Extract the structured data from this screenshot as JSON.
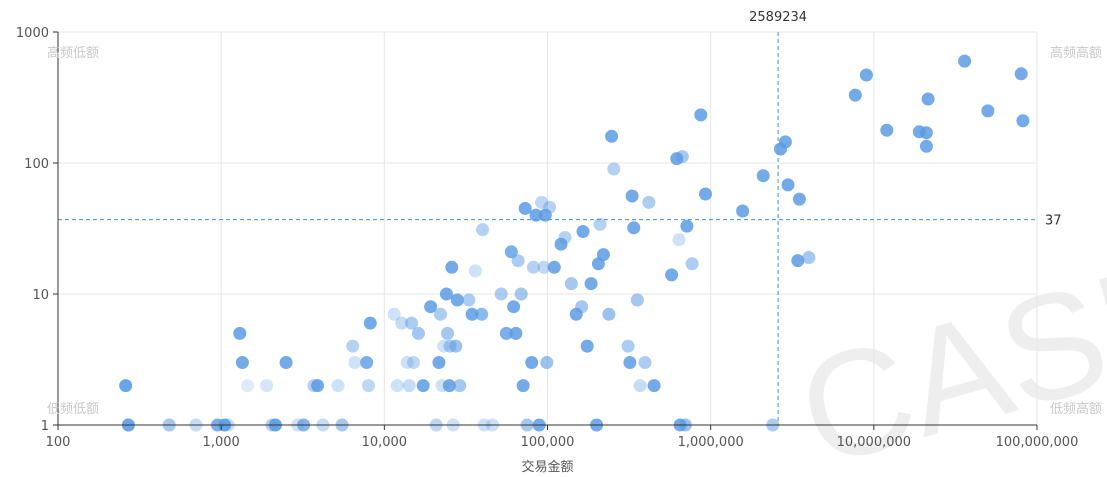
{
  "chart_data": {
    "type": "scatter",
    "xlabel": "交易金额",
    "ylabel": "",
    "x_scale": "log",
    "y_scale": "log",
    "xlim": [
      100,
      100000000
    ],
    "ylim": [
      1,
      1000
    ],
    "x_ticks": [
      {
        "value": 100,
        "label": "100"
      },
      {
        "value": 1000,
        "label": "1,000"
      },
      {
        "value": 10000,
        "label": "10,000"
      },
      {
        "value": 100000,
        "label": "100,000"
      },
      {
        "value": 1000000,
        "label": "1,000,000"
      },
      {
        "value": 10000000,
        "label": "10,000,000"
      },
      {
        "value": 100000000,
        "label": "100,000,000"
      }
    ],
    "y_ticks": [
      {
        "value": 1,
        "label": "1"
      },
      {
        "value": 10,
        "label": "10"
      },
      {
        "value": 100,
        "label": "100"
      },
      {
        "value": 1000,
        "label": "1000"
      }
    ],
    "grid": true,
    "reference_lines": {
      "x": {
        "value": 2589234,
        "label": "2589234"
      },
      "y": {
        "value": 37,
        "label": "37"
      }
    },
    "quadrant_labels": {
      "top_left": "高频低额",
      "top_right": "高频高额",
      "bottom_left": "低频低额",
      "bottom_right": "低频高额"
    },
    "watermark": "CASE",
    "point_color": "#5a9be3",
    "points": [
      [
        260,
        2,
        0.9
      ],
      [
        270,
        1,
        0.9
      ],
      [
        480,
        1,
        0.55
      ],
      [
        700,
        1,
        0.35
      ],
      [
        950,
        1,
        0.8
      ],
      [
        1050,
        1,
        0.9
      ],
      [
        1100,
        1,
        0.35
      ],
      [
        1300,
        5,
        0.85
      ],
      [
        1350,
        3,
        0.85
      ],
      [
        1450,
        2,
        0.2
      ],
      [
        1900,
        2,
        0.25
      ],
      [
        2050,
        1,
        0.45
      ],
      [
        2150,
        1,
        0.9
      ],
      [
        2500,
        3,
        0.85
      ],
      [
        2950,
        1,
        0.3
      ],
      [
        3200,
        1,
        0.75
      ],
      [
        3700,
        2,
        0.45
      ],
      [
        3900,
        2,
        0.85
      ],
      [
        4200,
        1,
        0.35
      ],
      [
        5200,
        2,
        0.3
      ],
      [
        5500,
        1,
        0.55
      ],
      [
        6400,
        4,
        0.45
      ],
      [
        6600,
        3,
        0.3
      ],
      [
        7800,
        3,
        0.8
      ],
      [
        8000,
        2,
        0.4
      ],
      [
        8200,
        6,
        0.85
      ],
      [
        11500,
        7,
        0.3
      ],
      [
        12000,
        2,
        0.3
      ],
      [
        12800,
        6,
        0.35
      ],
      [
        13800,
        3,
        0.3
      ],
      [
        14200,
        2,
        0.35
      ],
      [
        14700,
        6,
        0.5
      ],
      [
        15100,
        3,
        0.4
      ],
      [
        16200,
        5,
        0.55
      ],
      [
        17300,
        2,
        0.85
      ],
      [
        19200,
        8,
        0.85
      ],
      [
        20800,
        1,
        0.4
      ],
      [
        21600,
        3,
        0.85
      ],
      [
        22100,
        7,
        0.5
      ],
      [
        22600,
        2,
        0.3
      ],
      [
        23100,
        4,
        0.3
      ],
      [
        24000,
        10,
        0.85
      ],
      [
        24400,
        5,
        0.55
      ],
      [
        25000,
        2,
        0.85
      ],
      [
        25300,
        4,
        0.5
      ],
      [
        25900,
        16,
        0.85
      ],
      [
        26400,
        1,
        0.3
      ],
      [
        27400,
        4,
        0.6
      ],
      [
        28000,
        9,
        0.85
      ],
      [
        29000,
        2,
        0.55
      ],
      [
        33000,
        9,
        0.5
      ],
      [
        34500,
        7,
        0.85
      ],
      [
        36100,
        15,
        0.3
      ],
      [
        39500,
        7,
        0.7
      ],
      [
        40000,
        31,
        0.45
      ],
      [
        41000,
        1,
        0.3
      ],
      [
        46000,
        1,
        0.3
      ],
      [
        52000,
        10,
        0.5
      ],
      [
        56000,
        5,
        0.8
      ],
      [
        60000,
        21,
        0.8
      ],
      [
        62000,
        8,
        0.85
      ],
      [
        64000,
        5,
        0.85
      ],
      [
        66000,
        18,
        0.5
      ],
      [
        69000,
        10,
        0.55
      ],
      [
        71000,
        2,
        0.85
      ],
      [
        73000,
        45,
        0.85
      ],
      [
        75000,
        1,
        0.55
      ],
      [
        80000,
        3,
        0.85
      ],
      [
        82000,
        16,
        0.45
      ],
      [
        85000,
        40,
        0.85
      ],
      [
        89000,
        1,
        0.85
      ],
      [
        92000,
        50,
        0.4
      ],
      [
        95000,
        16,
        0.4
      ],
      [
        97000,
        40,
        0.85
      ],
      [
        99000,
        3,
        0.6
      ],
      [
        103000,
        46,
        0.45
      ],
      [
        110000,
        16,
        0.85
      ],
      [
        121000,
        24,
        0.85
      ],
      [
        128000,
        27,
        0.45
      ],
      [
        140000,
        12,
        0.55
      ],
      [
        150000,
        7,
        0.85
      ],
      [
        162000,
        8,
        0.55
      ],
      [
        165000,
        30,
        0.85
      ],
      [
        175000,
        4,
        0.85
      ],
      [
        185000,
        12,
        0.85
      ],
      [
        200000,
        1,
        0.85
      ],
      [
        205000,
        17,
        0.85
      ],
      [
        210000,
        34,
        0.45
      ],
      [
        220000,
        20,
        0.85
      ],
      [
        238000,
        7,
        0.6
      ],
      [
        247000,
        160,
        0.85
      ],
      [
        255000,
        90,
        0.45
      ],
      [
        312000,
        4,
        0.5
      ],
      [
        320000,
        3,
        0.85
      ],
      [
        330000,
        56,
        0.85
      ],
      [
        338000,
        32,
        0.85
      ],
      [
        355000,
        9,
        0.55
      ],
      [
        370000,
        2,
        0.35
      ],
      [
        396000,
        3,
        0.5
      ],
      [
        418000,
        50,
        0.5
      ],
      [
        450000,
        2,
        0.85
      ],
      [
        576000,
        14,
        0.85
      ],
      [
        620000,
        108,
        0.85
      ],
      [
        640000,
        26,
        0.3
      ],
      [
        650000,
        1,
        0.85
      ],
      [
        670000,
        112,
        0.55
      ],
      [
        700000,
        1,
        0.6
      ],
      [
        715000,
        33,
        0.85
      ],
      [
        770000,
        17,
        0.5
      ],
      [
        870000,
        233,
        0.85
      ],
      [
        930000,
        58,
        0.85
      ],
      [
        1570000,
        43,
        0.85
      ],
      [
        2100000,
        80,
        0.85
      ],
      [
        2400000,
        1,
        0.5
      ],
      [
        2680000,
        128,
        0.85
      ],
      [
        2870000,
        145,
        0.85
      ],
      [
        2980000,
        68,
        0.85
      ],
      [
        3420000,
        18,
        0.85
      ],
      [
        3500000,
        53,
        0.85
      ],
      [
        4000000,
        19,
        0.55
      ],
      [
        7700000,
        330,
        0.85
      ],
      [
        9000000,
        470,
        0.85
      ],
      [
        12000000,
        178,
        0.85
      ],
      [
        19000000,
        173,
        0.85
      ],
      [
        21000000,
        170,
        0.85
      ],
      [
        21000000,
        134,
        0.85
      ],
      [
        21500000,
        308,
        0.85
      ],
      [
        36000000,
        600,
        0.85
      ],
      [
        50000000,
        250,
        0.85
      ],
      [
        80000000,
        480,
        0.85
      ],
      [
        82000000,
        210,
        0.85
      ]
    ]
  }
}
